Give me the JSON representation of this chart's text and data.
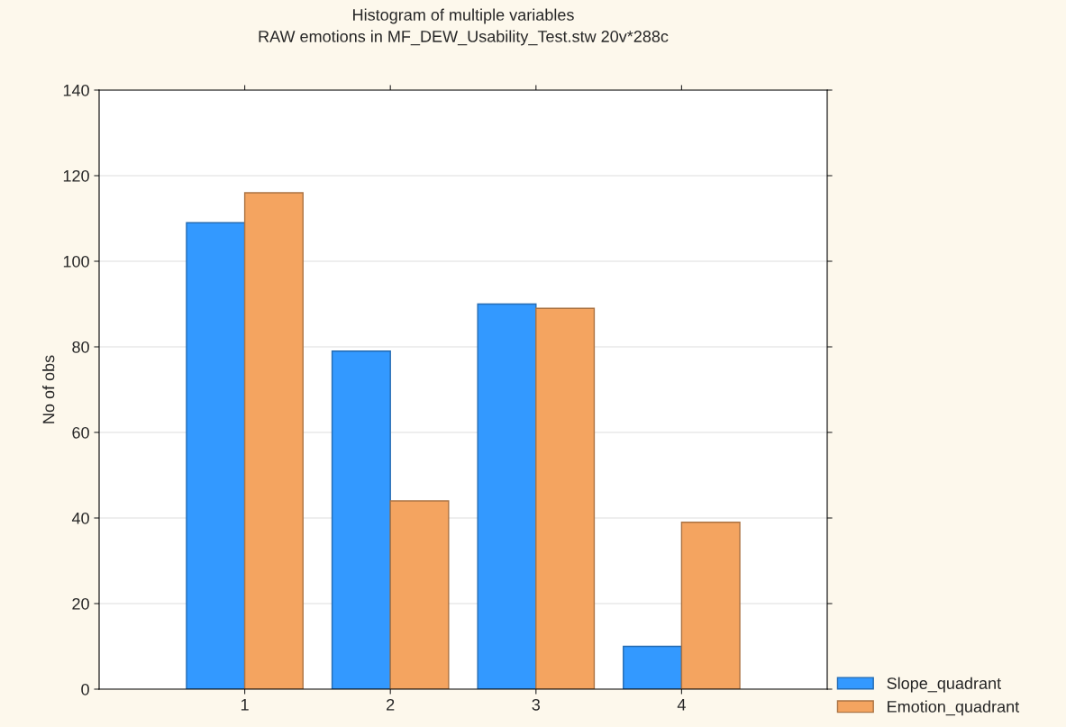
{
  "chart_data": {
    "type": "bar",
    "title": "Histogram of multiple variables",
    "subtitle": "RAW emotions in MF_DEW_Usability_Test.stw 20v*288c",
    "ylabel": "No of obs",
    "categories": [
      "1",
      "2",
      "3",
      "4"
    ],
    "series": [
      {
        "name": "Slope_quadrant",
        "color": "#3399ff",
        "values": [
          109,
          79,
          90,
          10
        ]
      },
      {
        "name": "Emotion_quadrant",
        "color": "#f4a460",
        "values": [
          116,
          44,
          89,
          39
        ]
      }
    ],
    "ylim": [
      0,
      140
    ],
    "yticks": [
      0,
      20,
      40,
      60,
      80,
      100,
      120,
      140
    ],
    "grid": "y",
    "legend": "bottom right"
  }
}
